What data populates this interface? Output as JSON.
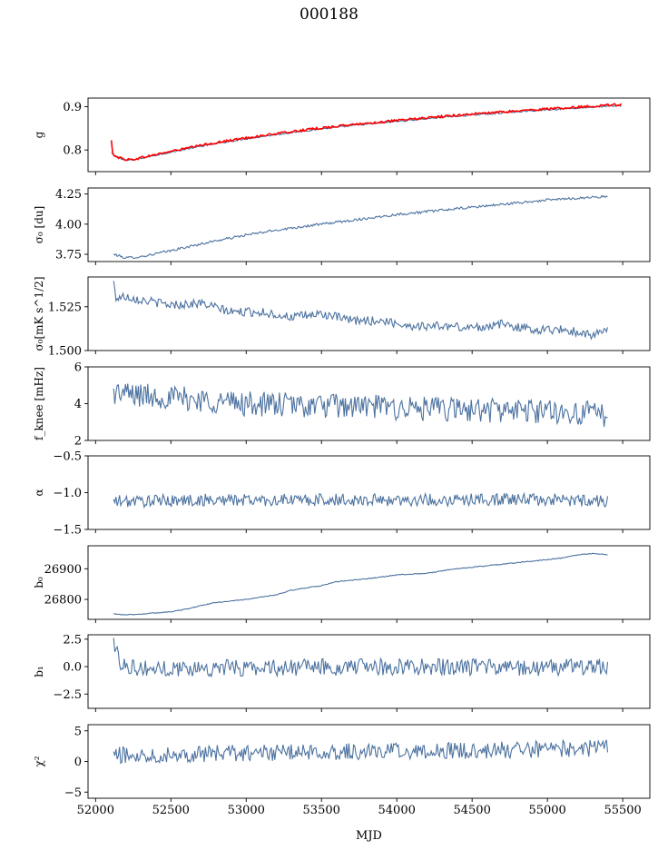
{
  "figure": {
    "title": "000188",
    "xlabel": "MJD",
    "xticks": [
      "52000",
      "52500",
      "53000",
      "53500",
      "54000",
      "54500",
      "55000",
      "55500"
    ],
    "colors": {
      "series": "#4c72a0",
      "fit": "#ff0000"
    }
  },
  "chart_data": [
    {
      "type": "line",
      "ylabel": "g",
      "xlim": [
        51950,
        55680
      ],
      "ylim": [
        0.75,
        0.92
      ],
      "yticks": [
        "0.8",
        "0.9"
      ],
      "ytick_values": [
        0.8,
        0.9
      ],
      "series": [
        {
          "color": "#4c72a0",
          "noise": 0.001,
          "points": [
            [
              52105,
              0.792
            ],
            [
              52150,
              0.782
            ],
            [
              52200,
              0.777
            ],
            [
              52250,
              0.777
            ],
            [
              52300,
              0.781
            ],
            [
              52500,
              0.795
            ],
            [
              52750,
              0.812
            ],
            [
              53000,
              0.826
            ],
            [
              53250,
              0.838
            ],
            [
              53500,
              0.849
            ],
            [
              53750,
              0.858
            ],
            [
              54000,
              0.866
            ],
            [
              54250,
              0.874
            ],
            [
              54500,
              0.881
            ],
            [
              54750,
              0.887
            ],
            [
              55000,
              0.893
            ],
            [
              55250,
              0.898
            ],
            [
              55400,
              0.901
            ],
            [
              55490,
              0.902
            ]
          ]
        },
        {
          "color": "#ff0000",
          "noise": 0.0015,
          "points": [
            [
              52105,
              0.822
            ],
            [
              52110,
              0.792
            ],
            [
              52120,
              0.79
            ],
            [
              52150,
              0.783
            ],
            [
              52200,
              0.778
            ],
            [
              52250,
              0.778
            ],
            [
              52300,
              0.782
            ],
            [
              52500,
              0.797
            ],
            [
              52750,
              0.814
            ],
            [
              53000,
              0.828
            ],
            [
              53250,
              0.84
            ],
            [
              53500,
              0.851
            ],
            [
              53750,
              0.86
            ],
            [
              54000,
              0.868
            ],
            [
              54250,
              0.876
            ],
            [
              54500,
              0.883
            ],
            [
              54750,
              0.889
            ],
            [
              55000,
              0.895
            ],
            [
              55250,
              0.9
            ],
            [
              55400,
              0.904
            ],
            [
              55490,
              0.905
            ]
          ]
        }
      ]
    },
    {
      "type": "line",
      "ylabel": "σ₀ [du]",
      "xlim": [
        51950,
        55680
      ],
      "ylim": [
        3.69,
        4.3
      ],
      "yticks": [
        "3.75",
        "4.00",
        "4.25"
      ],
      "ytick_values": [
        3.75,
        4.0,
        4.25
      ],
      "series": [
        {
          "color": "#4c72a0",
          "noise": 0.006,
          "points": [
            [
              52120,
              3.75
            ],
            [
              52200,
              3.72
            ],
            [
              52300,
              3.73
            ],
            [
              52500,
              3.78
            ],
            [
              52750,
              3.85
            ],
            [
              53000,
              3.91
            ],
            [
              53250,
              3.96
            ],
            [
              53500,
              4.0
            ],
            [
              53750,
              4.04
            ],
            [
              54000,
              4.08
            ],
            [
              54250,
              4.11
            ],
            [
              54500,
              4.14
            ],
            [
              54750,
              4.17
            ],
            [
              55000,
              4.2
            ],
            [
              55250,
              4.22
            ],
            [
              55400,
              4.23
            ]
          ]
        }
      ]
    },
    {
      "type": "line",
      "ylabel": "σ₀[mK s^1/2]",
      "xlim": [
        51950,
        55680
      ],
      "ylim": [
        1.5,
        1.542
      ],
      "yticks": [
        "1.500",
        "1.525"
      ],
      "ytick_values": [
        1.5,
        1.525
      ],
      "series": [
        {
          "color": "#4c72a0",
          "noise": 0.0015,
          "points": [
            [
              52120,
              1.539
            ],
            [
              52135,
              1.53
            ],
            [
              52200,
              1.531
            ],
            [
              52300,
              1.529
            ],
            [
              52500,
              1.526
            ],
            [
              52700,
              1.527
            ],
            [
              52900,
              1.522
            ],
            [
              53100,
              1.522
            ],
            [
              53300,
              1.519
            ],
            [
              53500,
              1.521
            ],
            [
              53700,
              1.517
            ],
            [
              53900,
              1.517
            ],
            [
              54100,
              1.514
            ],
            [
              54300,
              1.514
            ],
            [
              54500,
              1.513
            ],
            [
              54700,
              1.515
            ],
            [
              54900,
              1.512
            ],
            [
              55100,
              1.512
            ],
            [
              55300,
              1.509
            ],
            [
              55400,
              1.511
            ]
          ]
        }
      ]
    },
    {
      "type": "line",
      "ylabel": "f_knee [mHz]",
      "xlim": [
        51950,
        55680
      ],
      "ylim": [
        2,
        6
      ],
      "yticks": [
        "2",
        "4",
        "6"
      ],
      "ytick_values": [
        2,
        4,
        6
      ],
      "series": [
        {
          "color": "#4c72a0",
          "noise": 0.4,
          "points": [
            [
              52120,
              4.6
            ],
            [
              52400,
              4.4
            ],
            [
              52700,
              4.2
            ],
            [
              53000,
              4.0
            ],
            [
              53400,
              3.9
            ],
            [
              53800,
              3.85
            ],
            [
              54200,
              3.7
            ],
            [
              54600,
              3.65
            ],
            [
              55000,
              3.6
            ],
            [
              55400,
              3.4
            ]
          ]
        }
      ]
    },
    {
      "type": "line",
      "ylabel": "α",
      "xlim": [
        51950,
        55680
      ],
      "ylim": [
        -1.5,
        -0.5
      ],
      "yticks": [
        "−1.5",
        "−1.0",
        "−0.5"
      ],
      "ytick_values": [
        -1.5,
        -1.0,
        -0.5
      ],
      "series": [
        {
          "color": "#4c72a0",
          "noise": 0.05,
          "points": [
            [
              52120,
              -1.12
            ],
            [
              52800,
              -1.1
            ],
            [
              53500,
              -1.1
            ],
            [
              54200,
              -1.1
            ],
            [
              54800,
              -1.09
            ],
            [
              55400,
              -1.11
            ]
          ]
        }
      ]
    },
    {
      "type": "line",
      "ylabel": "b₀",
      "xlim": [
        51950,
        55680
      ],
      "ylim": [
        26735,
        26975
      ],
      "yticks": [
        "26800",
        "26900"
      ],
      "ytick_values": [
        26800,
        26900
      ],
      "series": [
        {
          "color": "#4c72a0",
          "noise": 0.8,
          "points": [
            [
              52120,
              26753
            ],
            [
              52200,
              26750
            ],
            [
              52300,
              26752
            ],
            [
              52500,
              26760
            ],
            [
              52600,
              26768
            ],
            [
              52700,
              26780
            ],
            [
              52800,
              26790
            ],
            [
              53000,
              26800
            ],
            [
              53200,
              26815
            ],
            [
              53300,
              26830
            ],
            [
              53500,
              26845
            ],
            [
              53600,
              26858
            ],
            [
              53800,
              26867
            ],
            [
              54000,
              26880
            ],
            [
              54200,
              26885
            ],
            [
              54350,
              26897
            ],
            [
              54500,
              26905
            ],
            [
              54700,
              26915
            ],
            [
              54900,
              26925
            ],
            [
              55100,
              26935
            ],
            [
              55200,
              26945
            ],
            [
              55300,
              26950
            ],
            [
              55400,
              26946
            ]
          ]
        }
      ]
    },
    {
      "type": "line",
      "ylabel": "b₁",
      "xlim": [
        51950,
        55680
      ],
      "ylim": [
        -3.8,
        2.9
      ],
      "yticks": [
        "−2.5",
        "0.0",
        "2.5"
      ],
      "ytick_values": [
        -2.5,
        0,
        2.5
      ],
      "series": [
        {
          "color": "#4c72a0",
          "noise": 0.45,
          "points": [
            [
              52120,
              2.3
            ],
            [
              52160,
              0.4
            ],
            [
              52300,
              -0.2
            ],
            [
              53000,
              -0.1
            ],
            [
              54000,
              0
            ],
            [
              55000,
              -0.1
            ],
            [
              55400,
              0
            ]
          ]
        }
      ]
    },
    {
      "type": "line",
      "ylabel": "χ²",
      "xlim": [
        51950,
        55680
      ],
      "ylim": [
        -6,
        6
      ],
      "yticks": [
        "−5",
        "0",
        "5"
      ],
      "ytick_values": [
        -5,
        0,
        5
      ],
      "series": [
        {
          "color": "#4c72a0",
          "noise": 0.8,
          "points": [
            [
              52120,
              1.0
            ],
            [
              52800,
              1.3
            ],
            [
              53600,
              1.6
            ],
            [
              54500,
              1.8
            ],
            [
              55400,
              2.2
            ]
          ]
        }
      ]
    }
  ]
}
